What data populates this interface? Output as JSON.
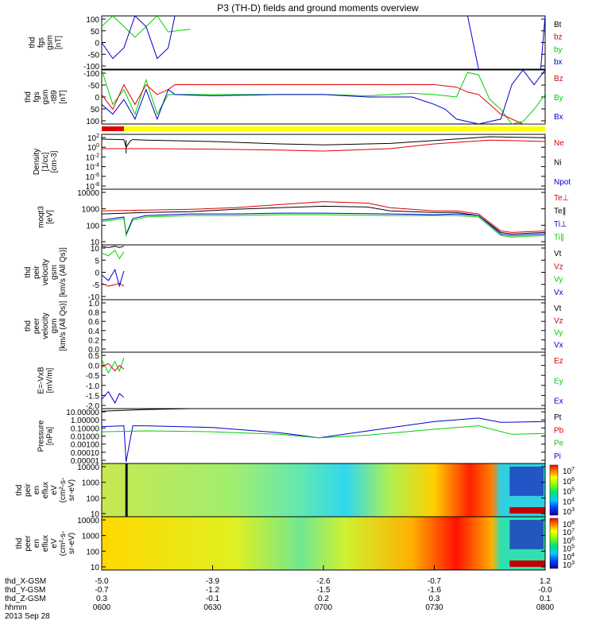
{
  "title": "P3 (TH-D) fields and ground moments overview",
  "footer": {
    "row_labels": [
      "thd_X-GSM",
      "thd_Y-GSM",
      "thd_Z-GSM",
      "hhmm",
      "2013 Sep 28"
    ],
    "times": [
      "0600",
      "0630",
      "0700",
      "0730",
      "0800"
    ],
    "x_gsm": [
      "-5.0",
      "-3.9",
      "-2.6",
      "-0.7",
      "1.2"
    ],
    "y_gsm": [
      "-0.7",
      "-1.2",
      "-1.5",
      "-1.6",
      "-0.0"
    ],
    "z_gsm": [
      "0.3",
      "-0.1",
      "0.2",
      "0.3",
      "0.1"
    ]
  },
  "colors": {
    "black": "#000000",
    "red": "#e00000",
    "green": "#00d000",
    "blue": "#0000d0",
    "yellow": "#ffff00"
  },
  "chart_data": [
    {
      "type": "line",
      "ylabel": [
        "thd",
        "fgs",
        "gsm",
        "[nT]"
      ],
      "yticks": [
        "100",
        "50",
        "0",
        "-50",
        "-100"
      ],
      "ylim": [
        -100,
        100
      ],
      "legend": [
        {
          "name": "Bt",
          "color": "#000000"
        },
        {
          "name": "bz",
          "color": "#e00000"
        },
        {
          "name": "by",
          "color": "#00d000"
        },
        {
          "name": "bx",
          "color": "#0000d0"
        }
      ],
      "series": [
        {
          "name": "by",
          "color": "#00d000",
          "x": [
            6.0,
            6.05,
            6.1,
            6.15,
            6.2,
            6.25,
            6.3,
            6.35,
            6.4
          ],
          "y": [
            60,
            100,
            60,
            20,
            60,
            100,
            40,
            45,
            50
          ]
        },
        {
          "name": "bx",
          "color": "#0000d0",
          "x": [
            6.0,
            6.05,
            6.1,
            6.15,
            6.2,
            6.25,
            6.3,
            6.33
          ],
          "y": [
            0,
            -60,
            -20,
            100,
            60,
            -60,
            -20,
            100
          ]
        },
        {
          "name": "bx",
          "color": "#0000d0",
          "x": [
            7.65,
            7.7
          ],
          "y": [
            100,
            -100
          ]
        },
        {
          "name": "bx",
          "color": "#0000d0",
          "x": [
            7.98,
            8.0
          ],
          "y": [
            -100,
            100
          ]
        }
      ]
    },
    {
      "type": "line",
      "ylabel": [
        "thd",
        "fgs",
        "gsm",
        "-t89",
        "[nT]"
      ],
      "yticks": [
        "-100",
        "-50",
        "0",
        "50",
        "100"
      ],
      "ylim": [
        -120,
        100
      ],
      "legend": [
        {
          "name": "Bz",
          "color": "#e00000"
        },
        {
          "name": "By",
          "color": "#00d000"
        },
        {
          "name": "Bx",
          "color": "#0000d0"
        }
      ],
      "series": [
        {
          "name": "By",
          "color": "#00d000",
          "x": [
            6.0,
            6.05,
            6.1,
            6.15,
            6.2,
            6.25,
            6.3,
            6.33,
            6.4,
            6.6,
            6.8,
            7.0,
            7.2,
            7.4,
            7.5,
            7.6,
            7.65,
            7.7,
            7.75,
            7.8,
            7.85,
            7.9,
            7.95,
            8.0
          ],
          "y": [
            100,
            -40,
            20,
            -80,
            60,
            -80,
            0,
            0,
            0,
            0,
            0,
            0,
            -5,
            5,
            0,
            -10,
            90,
            80,
            -20,
            -60,
            -120,
            -110,
            -60,
            0
          ]
        },
        {
          "name": "Bz",
          "color": "#e00000",
          "x": [
            6.0,
            6.05,
            6.1,
            6.15,
            6.2,
            6.25,
            6.3,
            6.33,
            6.5,
            6.7,
            7.0,
            7.3,
            7.5,
            7.6,
            7.65,
            7.7,
            7.8,
            7.9,
            8.0
          ],
          "y": [
            0,
            -60,
            40,
            -40,
            40,
            0,
            20,
            40,
            40,
            40,
            40,
            40,
            40,
            30,
            10,
            0,
            -80,
            -120,
            -120
          ]
        },
        {
          "name": "Bx",
          "color": "#0000d0",
          "x": [
            6.0,
            6.05,
            6.1,
            6.15,
            6.2,
            6.25,
            6.3,
            6.33,
            6.5,
            6.8,
            7.0,
            7.2,
            7.4,
            7.5,
            7.55,
            7.6,
            7.7,
            7.8,
            7.85,
            7.9,
            7.95,
            8.0
          ],
          "y": [
            -40,
            -80,
            -20,
            -100,
            20,
            -100,
            20,
            0,
            -5,
            0,
            0,
            -10,
            -10,
            -40,
            -60,
            -100,
            -120,
            -100,
            40,
            100,
            40,
            100
          ]
        }
      ]
    },
    {
      "type": "line",
      "ylabel": [
        "Density",
        "[1/cc]",
        "[cm-3]"
      ],
      "yticks": [
        "10^2",
        "10^0",
        "10^-2",
        "10^-4",
        "10^-6",
        "10^-8"
      ],
      "yscale": "log",
      "ylim": [
        -9,
        2.5
      ],
      "legend": [
        {
          "name": "Ne",
          "color": "#e00000"
        },
        {
          "name": "Ni",
          "color": "#000000"
        },
        {
          "name": "Npot",
          "color": "#0000d0"
        }
      ],
      "series": [
        {
          "name": "Ni",
          "color": "#000000",
          "x": [
            6.0,
            6.1,
            6.11,
            6.13,
            6.14,
            6.2,
            6.5,
            6.8,
            7.0,
            7.3,
            7.5,
            7.75,
            8.0
          ],
          "y": [
            1.5,
            1.4,
            -0.2,
            1.2,
            1.4,
            1.3,
            1.0,
            0.5,
            0.3,
            0.6,
            1.2,
            2.0,
            1.8
          ]
        },
        {
          "name": "Ni",
          "color": "#000000",
          "x": [
            6.11,
            6.11
          ],
          "y": [
            1.3,
            -1.5
          ]
        },
        {
          "name": "Ne",
          "color": "#e00000",
          "x": [
            6.0,
            6.2,
            6.5,
            6.8,
            7.0,
            7.3,
            7.5,
            7.75,
            8.0
          ],
          "y": [
            -0.5,
            -0.5,
            -0.6,
            -0.8,
            -1.0,
            -0.5,
            0.5,
            1.3,
            1.0
          ]
        }
      ]
    },
    {
      "type": "line",
      "ylabel": [
        "moqt3",
        "[eV]"
      ],
      "yticks": [
        "10000",
        "1000",
        "100",
        "10"
      ],
      "yscale": "log",
      "ylim": [
        0.5,
        4.1
      ],
      "legend": [
        {
          "name": "Te⊥",
          "color": "#e00000"
        },
        {
          "name": "Te∥",
          "color": "#000000"
        },
        {
          "name": "Ti⊥",
          "color": "#0000d0"
        },
        {
          "name": "Ti∥",
          "color": "#00d000"
        }
      ],
      "series": [
        {
          "name": "Te⊥",
          "color": "#e00000",
          "x": [
            6.0,
            6.2,
            6.4,
            6.6,
            6.8,
            7.0,
            7.2,
            7.3,
            7.5,
            7.6,
            7.7,
            7.8,
            7.85,
            8.0
          ],
          "y": [
            2.7,
            2.75,
            2.8,
            2.9,
            3.1,
            3.3,
            3.2,
            2.9,
            2.7,
            2.7,
            2.5,
            1.4,
            1.3,
            1.4
          ]
        },
        {
          "name": "Te∥",
          "color": "#000000",
          "x": [
            6.0,
            6.2,
            6.4,
            6.6,
            6.8,
            7.0,
            7.2,
            7.3,
            7.5,
            7.6,
            7.7,
            7.8,
            7.85,
            8.0
          ],
          "y": [
            2.5,
            2.6,
            2.65,
            2.8,
            2.9,
            3.0,
            2.95,
            2.7,
            2.6,
            2.6,
            2.4,
            1.3,
            1.2,
            1.3
          ]
        },
        {
          "name": "Ti⊥",
          "color": "#0000d0",
          "x": [
            6.0,
            6.1,
            6.11,
            6.14,
            6.2,
            6.4,
            6.6,
            6.8,
            7.0,
            7.3,
            7.5,
            7.6,
            7.7,
            7.8,
            7.85,
            8.0
          ],
          "y": [
            2.1,
            2.3,
            1.2,
            2.2,
            2.4,
            2.5,
            2.5,
            2.55,
            2.55,
            2.5,
            2.45,
            2.5,
            2.4,
            1.2,
            1.1,
            1.2
          ]
        },
        {
          "name": "Ti∥",
          "color": "#00d000",
          "x": [
            6.0,
            6.1,
            6.11,
            6.14,
            6.2,
            6.4,
            6.6,
            6.8,
            7.0,
            7.3,
            7.5,
            7.6,
            7.7,
            7.8,
            7.85,
            8.0
          ],
          "y": [
            2.0,
            2.2,
            1.1,
            2.1,
            2.3,
            2.4,
            2.4,
            2.45,
            2.45,
            2.4,
            2.4,
            2.4,
            2.3,
            1.1,
            1.0,
            1.1
          ]
        }
      ]
    },
    {
      "type": "line",
      "ylabel": [
        "thd",
        "peir",
        "velocity",
        "gsm",
        "[km/s (All Qs)]"
      ],
      "yticks": [
        "10",
        "5",
        "0",
        "-5",
        "-10"
      ],
      "ylim": [
        -10,
        10
      ],
      "legend": [
        {
          "name": "Vt",
          "color": "#000000"
        },
        {
          "name": "Vz",
          "color": "#e00000"
        },
        {
          "name": "Vy",
          "color": "#00d000"
        },
        {
          "name": "Vx",
          "color": "#0000d0"
        }
      ],
      "series": [
        {
          "name": "Vt",
          "color": "#000000",
          "x": [
            6.0,
            6.03,
            6.06,
            6.08,
            6.1
          ],
          "y": [
            9.5,
            9.0,
            9.5,
            9.0,
            9.5
          ]
        },
        {
          "name": "Vy",
          "color": "#00d000",
          "x": [
            6.0,
            6.03,
            6.06,
            6.08,
            6.1
          ],
          "y": [
            7.0,
            6.0,
            8.0,
            5.0,
            7.5
          ]
        },
        {
          "name": "Vz",
          "color": "#e00000",
          "x": [
            6.0,
            6.03,
            6.06,
            6.08,
            6.1
          ],
          "y": [
            -4.0,
            -5.0,
            -4.5,
            -4.0,
            -5.0
          ]
        },
        {
          "name": "Vx",
          "color": "#0000d0",
          "x": [
            6.0,
            6.03,
            6.06,
            6.08,
            6.1
          ],
          "y": [
            -1.0,
            -3.0,
            1.0,
            -5.0,
            0.5
          ]
        }
      ]
    },
    {
      "type": "line",
      "ylabel": [
        "thd",
        "peer",
        "velocity",
        "gsm",
        "[km/s (All Qs)]"
      ],
      "yticks": [
        "1.0",
        "0.8",
        "0.6",
        "0.4",
        "0.2",
        "0.0"
      ],
      "ylim": [
        0,
        1
      ],
      "legend": [
        {
          "name": "Vt",
          "color": "#000000"
        },
        {
          "name": "Vz",
          "color": "#e00000"
        },
        {
          "name": "Vy",
          "color": "#00d000"
        },
        {
          "name": "Vx",
          "color": "#0000d0"
        }
      ],
      "series": []
    },
    {
      "type": "line",
      "ylabel": [
        "E=-VxB",
        "[mV/m]"
      ],
      "yticks": [
        "0.5",
        "0.0",
        "-0.5",
        "-1.0",
        "-1.5",
        "-2.0"
      ],
      "ylim": [
        -2.1,
        0.9
      ],
      "legend": [
        {
          "name": "Ez",
          "color": "#e00000"
        },
        {
          "name": "Ey",
          "color": "#00d000"
        },
        {
          "name": "Ex",
          "color": "#0000d0"
        }
      ],
      "series": [
        {
          "name": "Ey",
          "color": "#00d000",
          "x": [
            6.0,
            6.03,
            6.06,
            6.08,
            6.1
          ],
          "y": [
            0.5,
            -0.2,
            0.4,
            -0.1,
            0.6
          ]
        },
        {
          "name": "Ez",
          "color": "#e00000",
          "x": [
            6.0,
            6.03,
            6.06,
            6.08,
            6.1
          ],
          "y": [
            0.1,
            0.3,
            -0.1,
            0.2,
            0.0
          ]
        },
        {
          "name": "Ex",
          "color": "#0000d0",
          "x": [
            6.0,
            6.03,
            6.06,
            6.08,
            6.1
          ],
          "y": [
            -1.6,
            -1.2,
            -1.8,
            -1.3,
            -1.5
          ]
        }
      ]
    },
    {
      "type": "line",
      "ylabel": [
        "Pressure",
        "[nPa]"
      ],
      "yticks": [
        "10.00000",
        "1.00000",
        "0.10000",
        "0.01000",
        "0.00100",
        "0.00010",
        "0.00001"
      ],
      "yscale": "log",
      "ylim": [
        -5.2,
        1.2
      ],
      "legend": [
        {
          "name": "Pt",
          "color": "#000000"
        },
        {
          "name": "Pb",
          "color": "#e00000"
        },
        {
          "name": "Pe",
          "color": "#00d000"
        },
        {
          "name": "Pi",
          "color": "#0000d0"
        }
      ],
      "series": [
        {
          "name": "Pt",
          "color": "#000000",
          "x": [
            6.0,
            6.2,
            6.4
          ],
          "y": [
            0.9,
            1.1,
            1.2
          ]
        },
        {
          "name": "Pi",
          "color": "#0000d0",
          "x": [
            6.0,
            6.1,
            6.11,
            6.14,
            6.2,
            6.5,
            6.8,
            6.98,
            7.2,
            7.5,
            7.7,
            7.8,
            8.0
          ],
          "y": [
            -0.9,
            -0.8,
            -5.0,
            -0.8,
            -0.8,
            -1.0,
            -1.6,
            -2.2,
            -1.4,
            -0.3,
            0.1,
            -0.4,
            -0.3
          ]
        },
        {
          "name": "Pe",
          "color": "#00d000",
          "x": [
            6.0,
            6.2,
            6.5,
            6.8,
            6.98,
            7.2,
            7.5,
            7.7,
            7.85,
            8.0
          ],
          "y": [
            -1.5,
            -1.4,
            -1.5,
            -1.8,
            -2.2,
            -1.9,
            -1.2,
            -0.8,
            -1.8,
            -1.7
          ]
        }
      ]
    },
    {
      "type": "heatmap",
      "ylabel": [
        "thd",
        "peir",
        "en",
        "eflux",
        "eV",
        "(cm^2-s-",
        "sr-eV)"
      ],
      "yticks": [
        "10000",
        "1000",
        "100",
        "10"
      ],
      "yscale": "log",
      "colorbar_ticks": [
        "10^7",
        "10^6",
        "10^5",
        "10^4",
        "10^3"
      ]
    },
    {
      "type": "heatmap",
      "ylabel": [
        "thd",
        "peer",
        "en",
        "eflux",
        "eV",
        "(cm^2-s-",
        "sr-eV)"
      ],
      "yticks": [
        "10000",
        "1000",
        "100",
        "10"
      ],
      "yscale": "log",
      "colorbar_ticks": [
        "10^8",
        "10^7",
        "10^6",
        "10^5",
        "10^4",
        "10^3"
      ]
    }
  ]
}
